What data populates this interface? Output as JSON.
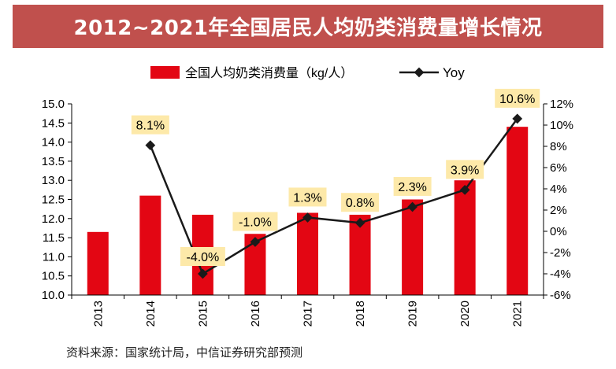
{
  "header": {
    "title": "2012~2021年全国居民人均奶类消费量增长情况"
  },
  "footer": {
    "source": "资料来源：国家统计局，中信证券研究部预测"
  },
  "colors": {
    "title_bg": "#c0504d",
    "bar": "#e30613",
    "line": "#1a1a1a",
    "label_bg": "#fde9a9"
  },
  "chart_data": {
    "type": "bar",
    "title": "2012~2021年全国居民人均奶类消费量增长情况",
    "categories": [
      "2013",
      "2014",
      "2015",
      "2016",
      "2017",
      "2018",
      "2019",
      "2020",
      "2021"
    ],
    "series": [
      {
        "name": "全国人均奶类消费量（kg/人）",
        "type": "bar",
        "axis": "left",
        "values": [
          11.65,
          12.6,
          12.1,
          11.6,
          12.15,
          12.1,
          12.5,
          13.0,
          14.4
        ]
      },
      {
        "name": "Yoy",
        "type": "line",
        "axis": "right",
        "values": [
          null,
          8.1,
          -4.0,
          -1.0,
          1.3,
          0.8,
          2.3,
          3.9,
          10.6
        ],
        "labels": [
          "",
          "8.1%",
          "-4.0%",
          "-1.0%",
          "1.3%",
          "0.8%",
          "2.3%",
          "3.9%",
          "10.6%"
        ]
      }
    ],
    "y_left": {
      "lim": [
        10.0,
        15.0
      ],
      "ticks": [
        "10.0",
        "10.5",
        "11.0",
        "11.5",
        "12.0",
        "12.5",
        "13.0",
        "13.5",
        "14.0",
        "14.5",
        "15.0"
      ]
    },
    "y_right": {
      "lim": [
        -6,
        12
      ],
      "ticks": [
        "-6%",
        "-4%",
        "-2%",
        "0%",
        "2%",
        "4%",
        "6%",
        "8%",
        "10%",
        "12%"
      ]
    },
    "legend": {
      "position": "top-center",
      "bar_label": "全国人均奶类消费量（kg/人）",
      "line_label": "Yoy"
    },
    "grid": false
  }
}
